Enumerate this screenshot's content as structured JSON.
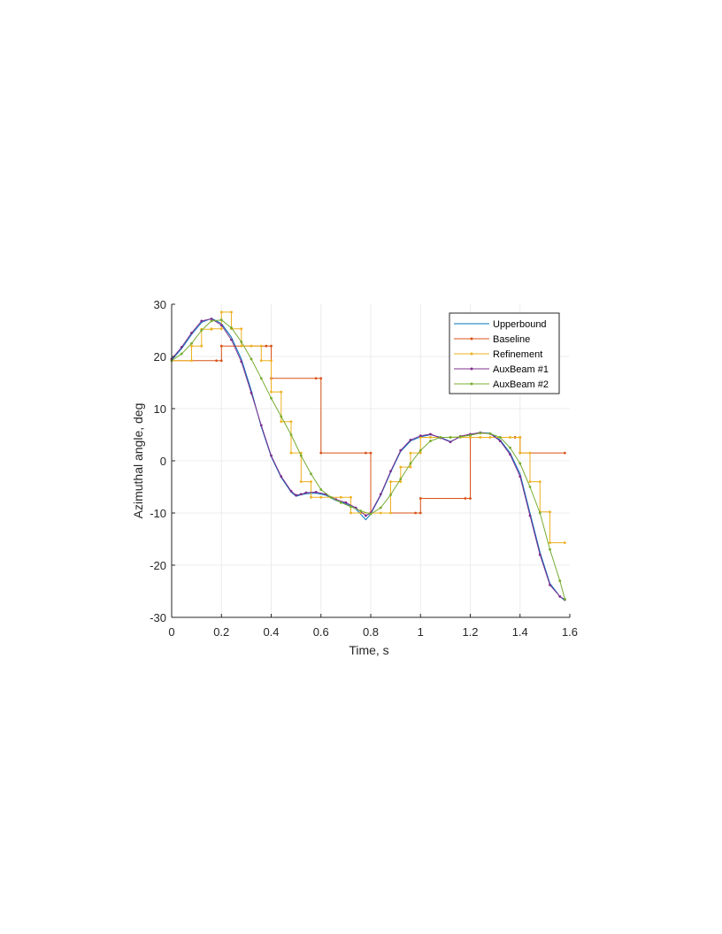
{
  "chart_data": {
    "type": "line",
    "xlabel": "Time, s",
    "ylabel": "Azimuthal angle, deg",
    "xlim": [
      0,
      1.6
    ],
    "ylim": [
      -30,
      30
    ],
    "xticks": [
      0,
      0.2,
      0.4,
      0.6,
      0.8,
      1,
      1.2,
      1.4,
      1.6
    ],
    "xtick_labels": [
      "0",
      "0.2",
      "0.4",
      "0.6",
      "0.8",
      "1",
      "1.2",
      "1.4",
      "1.6"
    ],
    "yticks": [
      -30,
      -20,
      -10,
      0,
      10,
      20,
      30
    ],
    "ytick_labels": [
      "-30",
      "-20",
      "-10",
      "0",
      "10",
      "20",
      "30"
    ],
    "grid": true,
    "legend_position": "top-right",
    "series": [
      {
        "name": "Upperbound",
        "color": "#0072BD",
        "marker": false,
        "x": [
          0,
          0.04,
          0.08,
          0.12,
          0.16,
          0.2,
          0.24,
          0.28,
          0.32,
          0.36,
          0.4,
          0.44,
          0.48,
          0.5,
          0.52,
          0.54,
          0.58,
          0.62,
          0.66,
          0.7,
          0.74,
          0.78,
          0.8,
          0.84,
          0.88,
          0.92,
          0.96,
          1.0,
          1.04,
          1.08,
          1.12,
          1.16,
          1.2,
          1.24,
          1.28,
          1.32,
          1.36,
          1.4,
          1.44,
          1.48,
          1.52,
          1.56,
          1.58
        ],
        "y": [
          19.3,
          21.5,
          24.2,
          26.5,
          27.3,
          26.3,
          23.7,
          19.5,
          13.5,
          6.5,
          0.8,
          -3.2,
          -6.0,
          -6.8,
          -6.5,
          -6.3,
          -6.2,
          -6.6,
          -7.6,
          -8.2,
          -9.2,
          -11.3,
          -10.2,
          -6.6,
          -2.2,
          1.8,
          3.8,
          4.6,
          5.0,
          4.5,
          3.7,
          4.6,
          5.0,
          5.4,
          5.3,
          4.0,
          1.5,
          -2.5,
          -10.0,
          -17.5,
          -23.5,
          -26.0,
          -26.8
        ]
      },
      {
        "name": "Baseline",
        "color": "#D95319",
        "marker": true,
        "x": [
          0,
          0.18,
          0.18,
          0.2,
          0.2,
          0.38,
          0.38,
          0.4,
          0.4,
          0.58,
          0.58,
          0.6,
          0.6,
          0.78,
          0.78,
          0.8,
          0.8,
          0.98,
          0.98,
          1.0,
          1.0,
          1.18,
          1.18,
          1.2,
          1.2,
          1.38,
          1.38,
          1.4,
          1.4,
          1.58
        ],
        "y": [
          19.2,
          19.2,
          19.2,
          19.2,
          22.0,
          22.0,
          22.0,
          22.0,
          15.8,
          15.8,
          15.8,
          15.8,
          1.5,
          1.5,
          1.5,
          1.5,
          -10.0,
          -10.0,
          -10.0,
          -10.0,
          -7.2,
          -7.2,
          -7.2,
          -7.2,
          4.5,
          4.5,
          4.5,
          4.5,
          1.5,
          1.5
        ]
      },
      {
        "name": "Refinement",
        "color": "#EDB120",
        "marker": true,
        "x": [
          0,
          0.08,
          0.08,
          0.12,
          0.12,
          0.16,
          0.16,
          0.2,
          0.2,
          0.24,
          0.24,
          0.28,
          0.28,
          0.32,
          0.32,
          0.36,
          0.36,
          0.4,
          0.4,
          0.44,
          0.44,
          0.48,
          0.48,
          0.52,
          0.52,
          0.56,
          0.56,
          0.6,
          0.6,
          0.64,
          0.64,
          0.68,
          0.68,
          0.72,
          0.72,
          0.76,
          0.76,
          0.8,
          0.8,
          0.84,
          0.84,
          0.88,
          0.88,
          0.92,
          0.92,
          0.96,
          0.96,
          1.0,
          1.0,
          1.04,
          1.04,
          1.08,
          1.08,
          1.12,
          1.12,
          1.16,
          1.16,
          1.2,
          1.2,
          1.24,
          1.24,
          1.28,
          1.28,
          1.32,
          1.32,
          1.36,
          1.36,
          1.4,
          1.4,
          1.44,
          1.44,
          1.48,
          1.48,
          1.52,
          1.52,
          1.58
        ],
        "y": [
          19.2,
          19.2,
          22.0,
          22.0,
          25.2,
          25.2,
          25.3,
          25.3,
          28.5,
          28.5,
          25.3,
          25.3,
          22.0,
          22.0,
          22.0,
          22.0,
          19.2,
          19.2,
          13.2,
          13.2,
          7.5,
          7.5,
          1.5,
          1.5,
          -4.0,
          -4.0,
          -7.0,
          -7.0,
          -7.0,
          -7.0,
          -7.0,
          -7.0,
          -7.0,
          -7.0,
          -10.0,
          -10.0,
          -10.0,
          -10.0,
          -10.0,
          -10.0,
          -10.0,
          -10.0,
          -4.0,
          -4.0,
          -1.2,
          -1.2,
          1.5,
          1.5,
          4.5,
          4.5,
          4.5,
          4.5,
          4.5,
          4.5,
          4.5,
          4.5,
          4.5,
          4.5,
          4.5,
          4.5,
          4.5,
          4.5,
          4.5,
          4.5,
          4.5,
          4.5,
          4.5,
          4.5,
          1.5,
          1.5,
          -4.0,
          -4.0,
          -9.8,
          -9.8,
          -15.7,
          -15.7
        ]
      },
      {
        "name": "AuxBeam #1",
        "color": "#7E2F8E",
        "marker": true,
        "x": [
          0,
          0.04,
          0.08,
          0.12,
          0.16,
          0.2,
          0.24,
          0.28,
          0.32,
          0.36,
          0.4,
          0.44,
          0.48,
          0.5,
          0.52,
          0.54,
          0.58,
          0.62,
          0.66,
          0.7,
          0.74,
          0.78,
          0.8,
          0.84,
          0.88,
          0.92,
          0.96,
          1.0,
          1.04,
          1.08,
          1.12,
          1.16,
          1.2,
          1.24,
          1.28,
          1.32,
          1.36,
          1.4,
          1.44,
          1.48,
          1.52,
          1.56,
          1.58
        ],
        "y": [
          19.5,
          21.8,
          24.5,
          26.8,
          27.2,
          26.0,
          23.2,
          19.0,
          13.0,
          6.8,
          1.0,
          -3.0,
          -5.8,
          -6.6,
          -6.4,
          -6.1,
          -6.0,
          -6.4,
          -7.4,
          -8.0,
          -9.0,
          -10.5,
          -10.0,
          -6.4,
          -2.0,
          2.0,
          4.0,
          4.8,
          5.1,
          4.4,
          3.6,
          4.7,
          5.1,
          5.4,
          5.2,
          3.8,
          1.2,
          -3.0,
          -10.5,
          -18.0,
          -23.8,
          -26.0,
          -26.6
        ]
      },
      {
        "name": "AuxBeam #2",
        "color": "#77AC30",
        "marker": true,
        "x": [
          0,
          0.04,
          0.08,
          0.12,
          0.16,
          0.2,
          0.24,
          0.28,
          0.32,
          0.36,
          0.4,
          0.44,
          0.48,
          0.52,
          0.56,
          0.6,
          0.64,
          0.68,
          0.72,
          0.76,
          0.8,
          0.84,
          0.88,
          0.92,
          0.96,
          1.0,
          1.04,
          1.08,
          1.12,
          1.16,
          1.2,
          1.24,
          1.28,
          1.32,
          1.36,
          1.4,
          1.44,
          1.48,
          1.52,
          1.56,
          1.58
        ],
        "y": [
          19.2,
          20.5,
          22.5,
          25.0,
          26.8,
          27.0,
          25.5,
          22.8,
          19.5,
          15.8,
          12.0,
          8.5,
          5.0,
          1.0,
          -2.5,
          -5.5,
          -7.0,
          -8.0,
          -8.8,
          -9.6,
          -10.2,
          -9.0,
          -6.5,
          -3.5,
          -0.5,
          2.0,
          3.8,
          4.5,
          4.5,
          4.6,
          4.9,
          5.3,
          5.2,
          4.5,
          2.5,
          -0.5,
          -5.0,
          -10.0,
          -17.0,
          -23.0,
          -26.5
        ]
      }
    ]
  }
}
